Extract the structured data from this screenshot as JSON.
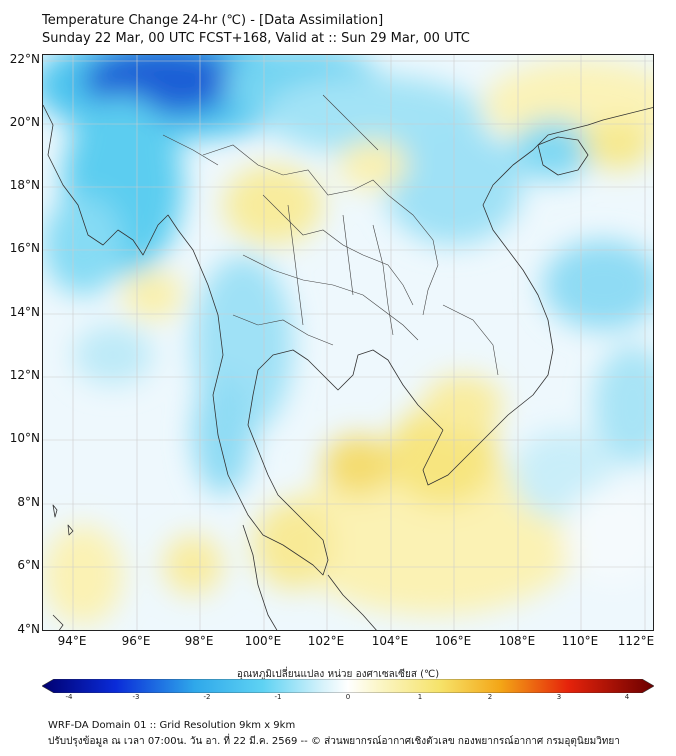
{
  "title": {
    "line1": "Temperature Change 24-hr (℃) - [Data Assimilation]",
    "line2": "Sunday 22 Mar, 00 UTC FCST+168, Valid at :: Sun 29 Mar, 00 UTC"
  },
  "map": {
    "lat_labels": [
      "22°N",
      "20°N",
      "18°N",
      "16°N",
      "14°N",
      "12°N",
      "10°N",
      "8°N",
      "6°N",
      "4°N"
    ],
    "lon_labels": [
      "94°E",
      "96°E",
      "98°E",
      "100°E",
      "102°E",
      "104°E",
      "106°E",
      "108°E",
      "110°E",
      "112°E"
    ],
    "lat_range": [
      4,
      22.3
    ],
    "lon_range": [
      93,
      112.3
    ]
  },
  "colorbar": {
    "label": "อุณหภูมิเปลี่ยนแปลง หน่วย องศาเซลเซียส (℃)",
    "ticks": [
      "-4",
      "-3",
      "-2",
      "-1",
      "0",
      "1",
      "2",
      "3",
      "4"
    ],
    "min": -4,
    "max": 4
  },
  "footer": {
    "line1": "WRF-DA Domain 01 :: Grid Resolution 9km x 9km",
    "line2": "ปรับปรุงข้อมูล ณ เวลา 07:00น. วัน อา. ที่ 22 มี.ค. 2569 -- © ส่วนพยากรณ์อากาศเชิงตัวเลข กองพยากรณ์อากาศ กรมอุตุนิยมวิทยา"
  }
}
